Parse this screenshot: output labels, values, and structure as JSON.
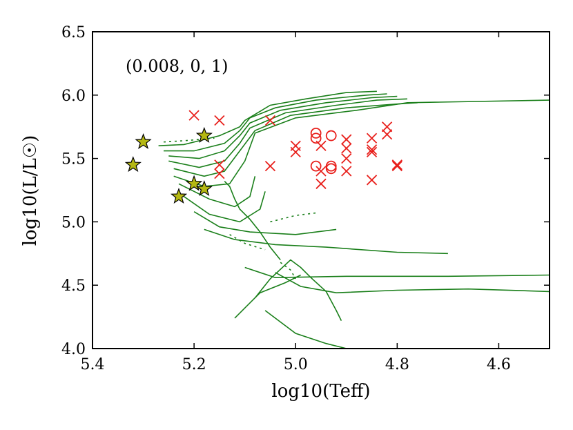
{
  "chart_data": {
    "type": "scatter",
    "title": "",
    "annotation": "(0.008, 0, 1)",
    "xlabel": "log10(Teff)",
    "ylabel": "log10(L/L☉)",
    "xlim": [
      5.4,
      4.5
    ],
    "ylim": [
      4.0,
      6.5
    ],
    "x_ticks": [
      5.4,
      5.2,
      5.0,
      4.8,
      4.6
    ],
    "x_tick_labels": [
      "5.4",
      "5.2",
      "5.0",
      "4.8",
      "4.6"
    ],
    "y_ticks": [
      4.0,
      4.5,
      5.0,
      5.5,
      6.0,
      6.5
    ],
    "y_tick_labels": [
      "4.0",
      "4.5",
      "5.0",
      "5.5",
      "6.0",
      "6.5"
    ],
    "grid": false,
    "colors": {
      "tracks": "#1a7f1a",
      "crosses": "#e8201c",
      "circles": "#e8201c",
      "stars_fill": "#b5b812",
      "stars_edge": "#000000"
    },
    "series": [
      {
        "name": "stars",
        "marker": "star",
        "points": [
          [
            5.32,
            5.45
          ],
          [
            5.3,
            5.63
          ],
          [
            5.23,
            5.2
          ],
          [
            5.2,
            5.3
          ],
          [
            5.18,
            5.26
          ],
          [
            5.18,
            5.68
          ]
        ]
      },
      {
        "name": "crosses",
        "marker": "x",
        "points": [
          [
            5.2,
            5.84
          ],
          [
            5.15,
            5.8
          ],
          [
            5.15,
            5.45
          ],
          [
            5.15,
            5.38
          ],
          [
            5.05,
            5.8
          ],
          [
            5.05,
            5.44
          ],
          [
            5.0,
            5.6
          ],
          [
            5.0,
            5.55
          ],
          [
            4.95,
            5.6
          ],
          [
            4.95,
            5.4
          ],
          [
            4.95,
            5.3
          ],
          [
            4.9,
            5.65
          ],
          [
            4.9,
            5.58
          ],
          [
            4.9,
            5.5
          ],
          [
            4.9,
            5.4
          ],
          [
            4.85,
            5.66
          ],
          [
            4.85,
            5.57
          ],
          [
            4.85,
            5.55
          ],
          [
            4.85,
            5.33
          ],
          [
            4.82,
            5.75
          ],
          [
            4.82,
            5.69
          ],
          [
            4.8,
            5.45
          ],
          [
            4.8,
            5.44
          ]
        ]
      },
      {
        "name": "circles",
        "marker": "o",
        "points": [
          [
            4.96,
            5.7
          ],
          [
            4.96,
            5.66
          ],
          [
            4.93,
            5.68
          ],
          [
            4.96,
            5.44
          ],
          [
            4.93,
            5.44
          ],
          [
            4.93,
            5.42
          ]
        ]
      }
    ],
    "tracks": [
      [
        [
          5.27,
          5.6
        ],
        [
          5.22,
          5.61
        ],
        [
          5.15,
          5.68
        ],
        [
          5.11,
          5.75
        ],
        [
          5.1,
          5.8
        ],
        [
          5.05,
          5.92
        ],
        [
          4.98,
          5.97
        ],
        [
          4.9,
          6.02
        ],
        [
          4.84,
          6.03
        ]
      ],
      [
        [
          5.26,
          5.56
        ],
        [
          5.2,
          5.56
        ],
        [
          5.14,
          5.62
        ],
        [
          5.11,
          5.72
        ],
        [
          5.09,
          5.82
        ],
        [
          5.04,
          5.9
        ],
        [
          4.96,
          5.96
        ],
        [
          4.86,
          6.0
        ],
        [
          4.82,
          6.01
        ]
      ],
      [
        [
          5.25,
          5.52
        ],
        [
          5.19,
          5.5
        ],
        [
          5.14,
          5.56
        ],
        [
          5.11,
          5.68
        ],
        [
          5.09,
          5.78
        ],
        [
          5.03,
          5.88
        ],
        [
          4.94,
          5.94
        ],
        [
          4.85,
          5.98
        ],
        [
          4.8,
          5.99
        ]
      ],
      [
        [
          5.25,
          5.48
        ],
        [
          5.19,
          5.43
        ],
        [
          5.14,
          5.48
        ],
        [
          5.11,
          5.62
        ],
        [
          5.09,
          5.74
        ],
        [
          5.02,
          5.86
        ],
        [
          4.92,
          5.92
        ],
        [
          4.84,
          5.96
        ],
        [
          4.78,
          5.97
        ]
      ],
      [
        [
          5.24,
          5.42
        ],
        [
          5.18,
          5.36
        ],
        [
          5.14,
          5.4
        ],
        [
          5.11,
          5.56
        ],
        [
          5.08,
          5.72
        ],
        [
          5.01,
          5.84
        ],
        [
          4.9,
          5.9
        ],
        [
          4.8,
          5.93
        ],
        [
          4.76,
          5.94
        ]
      ],
      [
        [
          5.24,
          5.36
        ],
        [
          5.18,
          5.28
        ],
        [
          5.13,
          5.3
        ],
        [
          5.1,
          5.48
        ],
        [
          5.08,
          5.7
        ],
        [
          5.0,
          5.82
        ],
        [
          4.88,
          5.88
        ],
        [
          4.78,
          5.94
        ],
        [
          4.5,
          5.96
        ]
      ],
      [
        [
          5.23,
          5.3
        ],
        [
          5.17,
          5.18
        ],
        [
          5.12,
          5.12
        ],
        [
          5.09,
          5.2
        ],
        [
          5.08,
          5.36
        ]
      ],
      [
        [
          5.22,
          5.2
        ],
        [
          5.17,
          5.06
        ],
        [
          5.11,
          5.0
        ],
        [
          5.07,
          5.1
        ],
        [
          5.06,
          5.24
        ]
      ],
      [
        [
          5.2,
          5.08
        ],
        [
          5.15,
          4.96
        ],
        [
          5.09,
          4.92
        ],
        [
          5.0,
          4.9
        ],
        [
          4.92,
          4.94
        ]
      ],
      [
        [
          5.18,
          4.94
        ],
        [
          5.12,
          4.86
        ],
        [
          5.04,
          4.82
        ],
        [
          4.94,
          4.8
        ],
        [
          4.8,
          4.76
        ],
        [
          4.7,
          4.75
        ]
      ],
      [
        [
          5.1,
          4.64
        ],
        [
          5.04,
          4.56
        ],
        [
          4.9,
          4.57
        ],
        [
          4.7,
          4.57
        ],
        [
          4.5,
          4.58
        ]
      ],
      [
        [
          5.04,
          4.6
        ],
        [
          4.99,
          4.49
        ],
        [
          4.92,
          4.44
        ],
        [
          4.8,
          4.46
        ],
        [
          4.66,
          4.47
        ],
        [
          4.5,
          4.45
        ]
      ],
      [
        [
          5.06,
          4.3
        ],
        [
          5.0,
          4.12
        ],
        [
          4.94,
          4.04
        ],
        [
          4.9,
          4.0
        ]
      ],
      [
        [
          5.08,
          4.4
        ],
        [
          5.05,
          4.55
        ],
        [
          5.01,
          4.7
        ],
        [
          4.99,
          4.64
        ],
        [
          4.97,
          4.56
        ],
        [
          4.94,
          4.45
        ],
        [
          4.92,
          4.3
        ],
        [
          4.91,
          4.22
        ]
      ],
      [
        [
          5.14,
          5.32
        ],
        [
          5.13,
          5.28
        ],
        [
          5.12,
          5.18
        ],
        [
          5.11,
          5.1
        ],
        [
          5.09,
          5.02
        ],
        [
          5.07,
          4.92
        ],
        [
          5.05,
          4.8
        ],
        [
          5.03,
          4.7
        ]
      ],
      [
        [
          5.12,
          4.24
        ],
        [
          5.1,
          4.32
        ],
        [
          5.07,
          4.44
        ],
        [
          5.02,
          4.52
        ],
        [
          4.99,
          4.58
        ]
      ]
    ],
    "dashed_tracks": [
      [
        [
          5.26,
          5.63
        ],
        [
          5.22,
          5.64
        ],
        [
          5.16,
          5.66
        ]
      ],
      [
        [
          5.13,
          4.9
        ],
        [
          5.1,
          4.83
        ],
        [
          5.06,
          4.78
        ]
      ],
      [
        [
          5.05,
          5.0
        ],
        [
          5.0,
          5.05
        ],
        [
          4.96,
          5.07
        ]
      ],
      [
        [
          5.03,
          4.68
        ],
        [
          5.01,
          4.62
        ],
        [
          5.0,
          4.55
        ]
      ]
    ]
  }
}
